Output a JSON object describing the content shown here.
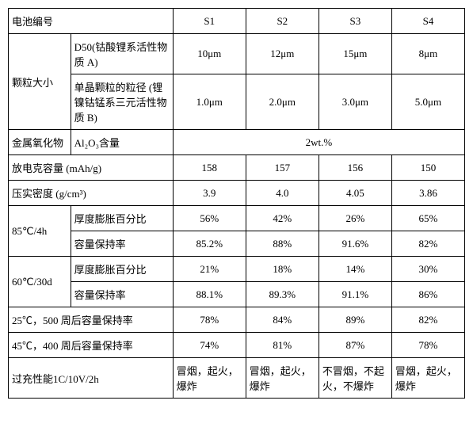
{
  "headers": {
    "battery_no": "电池编号",
    "s1": "S1",
    "s2": "S2",
    "s3": "S3",
    "s4": "S4"
  },
  "particle_size": {
    "group": "颗粒大小",
    "d50_label": "D50(钴酸锂系活性物质 A)",
    "d50": {
      "s1": "10μm",
      "s2": "12μm",
      "s3": "15μm",
      "s4": "8μm"
    },
    "single_label": "单晶颗粒的粒径 (锂镍钴锰系三元活性物质 B)",
    "single": {
      "s1": "1.0μm",
      "s2": "2.0μm",
      "s3": "3.0μm",
      "s4": "5.0μm"
    }
  },
  "metal_oxide": {
    "group": "金属氧化物",
    "sub": "Al₂O₃含量",
    "value": "2wt.%"
  },
  "discharge": {
    "label": "放电克容量 (mAh/g)",
    "s1": "158",
    "s2": "157",
    "s3": "156",
    "s4": "150"
  },
  "compaction": {
    "label": "压实密度 (g/cm³)",
    "s1": "3.9",
    "s2": "4.0",
    "s3": "4.05",
    "s4": "3.86"
  },
  "t85": {
    "group": "85℃/4h",
    "thick_label": "厚度膨胀百分比",
    "thick": {
      "s1": "56%",
      "s2": "42%",
      "s3": "26%",
      "s4": "65%"
    },
    "cap_label": "容量保持率",
    "cap": {
      "s1": "85.2%",
      "s2": "88%",
      "s3": "91.6%",
      "s4": "82%"
    }
  },
  "t60": {
    "group": "60℃/30d",
    "thick_label": "厚度膨胀百分比",
    "thick": {
      "s1": "21%",
      "s2": "18%",
      "s3": "14%",
      "s4": "30%"
    },
    "cap_label": "容量保持率",
    "cap": {
      "s1": "88.1%",
      "s2": "89.3%",
      "s3": "91.1%",
      "s4": "86%"
    }
  },
  "cyc25": {
    "label": "25℃，500 周后容量保持率",
    "s1": "78%",
    "s2": "84%",
    "s3": "89%",
    "s4": "82%"
  },
  "cyc45": {
    "label": "45℃，400 周后容量保持率",
    "s1": "74%",
    "s2": "81%",
    "s3": "87%",
    "s4": "78%"
  },
  "overcharge": {
    "label": "过充性能1C/10V/2h",
    "s1": "冒烟，起火，爆炸",
    "s2": "冒烟，起火，爆炸",
    "s3": "不冒烟，不起火，不爆炸",
    "s4": "冒烟，起火，爆炸"
  }
}
